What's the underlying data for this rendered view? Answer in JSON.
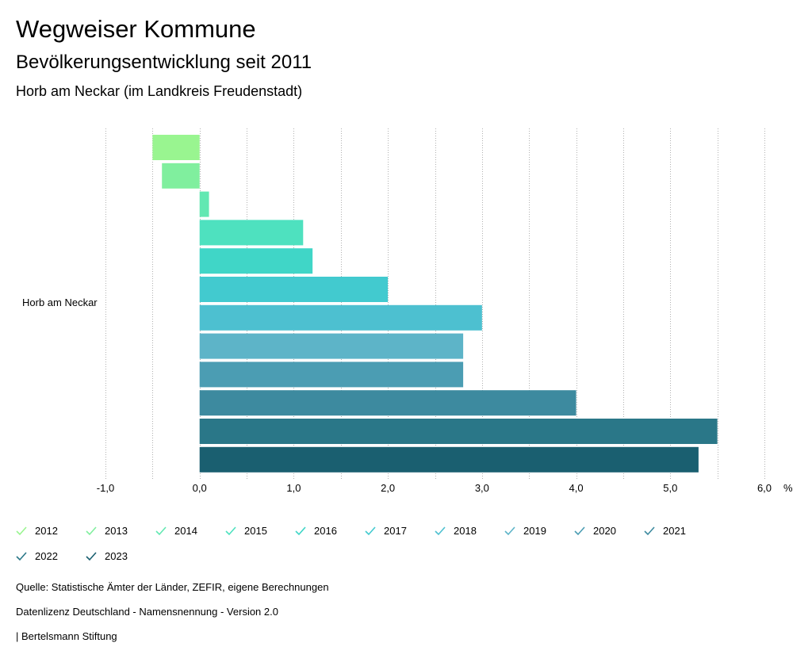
{
  "header": {
    "title": "Wegweiser Kommune",
    "subtitle": "Bevölkerungsentwicklung seit 2011",
    "region": "Horb am Neckar (im Landkreis Freudenstadt)"
  },
  "chart_data": {
    "type": "bar",
    "orientation": "horizontal",
    "title": "Bevölkerungsentwicklung seit 2011",
    "category": "Horb am Neckar",
    "xlabel": "%",
    "xlim": [
      -1.0,
      6.0
    ],
    "xticks": [
      "-1,0",
      "0,0",
      "1,0",
      "2,0",
      "3,0",
      "4,0",
      "5,0",
      "6,0"
    ],
    "grid": "dotted vertical",
    "series": [
      {
        "name": "2012",
        "value": -0.5,
        "color": "#99f590"
      },
      {
        "name": "2013",
        "value": -0.4,
        "color": "#80ef9e"
      },
      {
        "name": "2014",
        "value": 0.1,
        "color": "#62e8b2"
      },
      {
        "name": "2015",
        "value": 1.1,
        "color": "#4ee1bf"
      },
      {
        "name": "2016",
        "value": 1.2,
        "color": "#40d6c7"
      },
      {
        "name": "2017",
        "value": 2.0,
        "color": "#42cacf"
      },
      {
        "name": "2018",
        "value": 3.0,
        "color": "#4dc0d0"
      },
      {
        "name": "2019",
        "value": 2.8,
        "color": "#5db4c8"
      },
      {
        "name": "2020",
        "value": 2.8,
        "color": "#4b9db3"
      },
      {
        "name": "2021",
        "value": 4.0,
        "color": "#3d8a9f"
      },
      {
        "name": "2022",
        "value": 5.5,
        "color": "#2a7788"
      },
      {
        "name": "2023",
        "value": 5.3,
        "color": "#1a5f70"
      }
    ]
  },
  "footer": {
    "source": "Quelle: Statistische Ämter der Länder, ZEFIR, eigene Berechnungen",
    "license": "Datenlizenz Deutschland - Namensnennung - Version 2.0",
    "publisher": "| Bertelsmann Stiftung"
  }
}
